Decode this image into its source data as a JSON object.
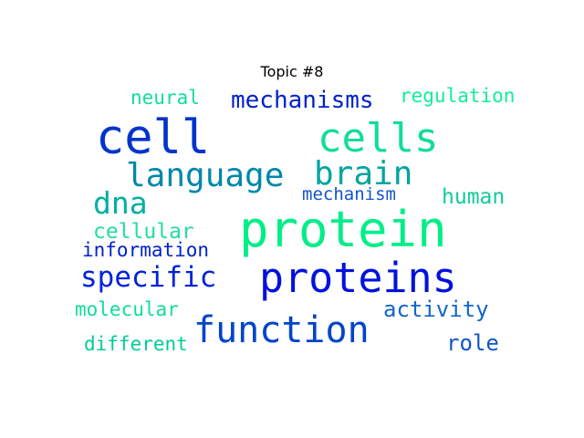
{
  "chart_data": {
    "type": "wordcloud",
    "title": "Topic #8",
    "words": [
      {
        "text": "protein",
        "color": "#00ee88"
      },
      {
        "text": "proteins",
        "color": "#0011dd"
      },
      {
        "text": "cell",
        "color": "#0033cc"
      },
      {
        "text": "cells",
        "color": "#11dd99"
      },
      {
        "text": "function",
        "color": "#0044cc"
      },
      {
        "text": "language",
        "color": "#0088aa"
      },
      {
        "text": "brain",
        "color": "#00a5a0"
      },
      {
        "text": "specific",
        "color": "#0022dd"
      },
      {
        "text": "dna",
        "color": "#00b0a0"
      },
      {
        "text": "mechanisms",
        "color": "#0022cc"
      },
      {
        "text": "activity",
        "color": "#1166cc"
      },
      {
        "text": "role",
        "color": "#1155cc"
      },
      {
        "text": "human",
        "color": "#11cc99"
      },
      {
        "text": "cellular",
        "color": "#22dda0"
      },
      {
        "text": "information",
        "color": "#0022cc"
      },
      {
        "text": "mechanism",
        "color": "#1155cc"
      },
      {
        "text": "neural",
        "color": "#11dd99"
      },
      {
        "text": "regulation",
        "color": "#11ee99"
      },
      {
        "text": "molecular",
        "color": "#11dd99"
      },
      {
        "text": "different",
        "color": "#00cc99"
      }
    ]
  }
}
